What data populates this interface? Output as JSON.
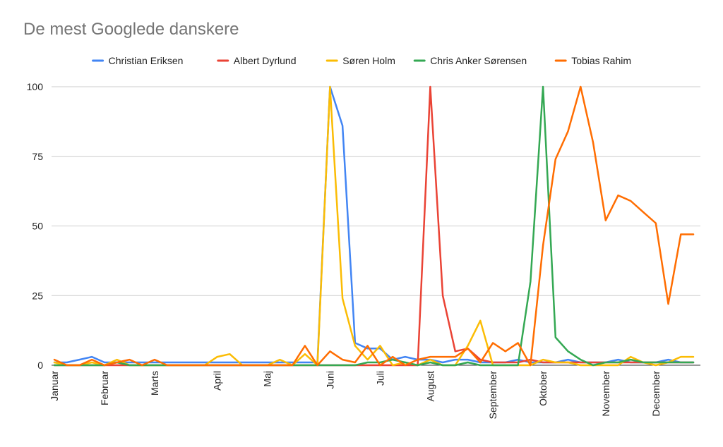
{
  "chart_data": {
    "type": "line",
    "title": "De mest Googlede danskere",
    "xlabel": "",
    "ylabel": "",
    "ylim": [
      0,
      100
    ],
    "yticks": [
      0,
      25,
      50,
      75,
      100
    ],
    "grid": true,
    "legend_position": "top",
    "x_count": 52,
    "x_tick_labels": [
      {
        "label": "Januar",
        "index": 0
      },
      {
        "label": "Februar",
        "index": 4
      },
      {
        "label": "Marts",
        "index": 8
      },
      {
        "label": "April",
        "index": 13
      },
      {
        "label": "Maj",
        "index": 17
      },
      {
        "label": "Juni",
        "index": 22
      },
      {
        "label": "Juli",
        "index": 26
      },
      {
        "label": "August",
        "index": 30
      },
      {
        "label": "September",
        "index": 35
      },
      {
        "label": "Oktober",
        "index": 39
      },
      {
        "label": "November",
        "index": 44
      },
      {
        "label": "December",
        "index": 48
      }
    ],
    "series": [
      {
        "name": "Christian Eriksen",
        "color": "#4285F4",
        "values": [
          1,
          1,
          2,
          3,
          1,
          1,
          1,
          1,
          1,
          1,
          1,
          1,
          1,
          1,
          1,
          1,
          1,
          1,
          1,
          1,
          1,
          1,
          100,
          86,
          8,
          6,
          6,
          2,
          3,
          2,
          2,
          1,
          2,
          2,
          1,
          1,
          1,
          2,
          1,
          1,
          1,
          2,
          1,
          1,
          1,
          2,
          1,
          1,
          1,
          2,
          1,
          1
        ]
      },
      {
        "name": "Albert Dyrlund",
        "color": "#EA4335",
        "values": [
          0,
          0,
          0,
          0,
          0,
          0,
          0,
          0,
          0,
          0,
          0,
          0,
          0,
          0,
          0,
          0,
          0,
          0,
          0,
          0,
          0,
          0,
          0,
          0,
          0,
          0,
          0,
          0,
          0,
          0,
          100,
          25,
          5,
          6,
          2,
          1,
          1,
          1,
          2,
          1,
          1,
          1,
          1,
          1,
          1,
          1,
          1,
          1,
          1,
          1,
          1,
          1
        ]
      },
      {
        "name": "Søren Holm",
        "color": "#FBBC04",
        "values": [
          1,
          0,
          0,
          1,
          0,
          2,
          0,
          0,
          0,
          0,
          0,
          0,
          0,
          3,
          4,
          0,
          0,
          0,
          2,
          0,
          4,
          0,
          100,
          24,
          7,
          2,
          7,
          0,
          1,
          0,
          2,
          0,
          0,
          7,
          16,
          0,
          0,
          0,
          0,
          2,
          1,
          1,
          0,
          0,
          0,
          0,
          3,
          1,
          0,
          1,
          3,
          3
        ]
      },
      {
        "name": "Chris Anker Sørensen",
        "color": "#34A853",
        "values": [
          0,
          0,
          0,
          0,
          0,
          1,
          0,
          0,
          0,
          0,
          0,
          0,
          0,
          0,
          0,
          0,
          0,
          0,
          0,
          0,
          0,
          0,
          0,
          0,
          0,
          1,
          1,
          2,
          1,
          0,
          1,
          0,
          0,
          1,
          0,
          0,
          0,
          0,
          30,
          100,
          10,
          5,
          2,
          0,
          1,
          1,
          2,
          1,
          1,
          1,
          1,
          1
        ]
      },
      {
        "name": "Tobias Rahim",
        "color": "#FF6D01",
        "values": [
          2,
          0,
          0,
          2,
          0,
          1,
          2,
          0,
          2,
          0,
          0,
          0,
          0,
          0,
          0,
          0,
          0,
          0,
          0,
          0,
          7,
          0,
          5,
          2,
          1,
          7,
          0,
          3,
          0,
          2,
          3,
          3,
          3,
          6,
          1,
          8,
          5,
          8,
          0,
          43,
          74,
          84,
          100,
          80,
          52,
          61,
          59,
          55,
          51,
          22,
          47,
          47
        ]
      }
    ]
  }
}
